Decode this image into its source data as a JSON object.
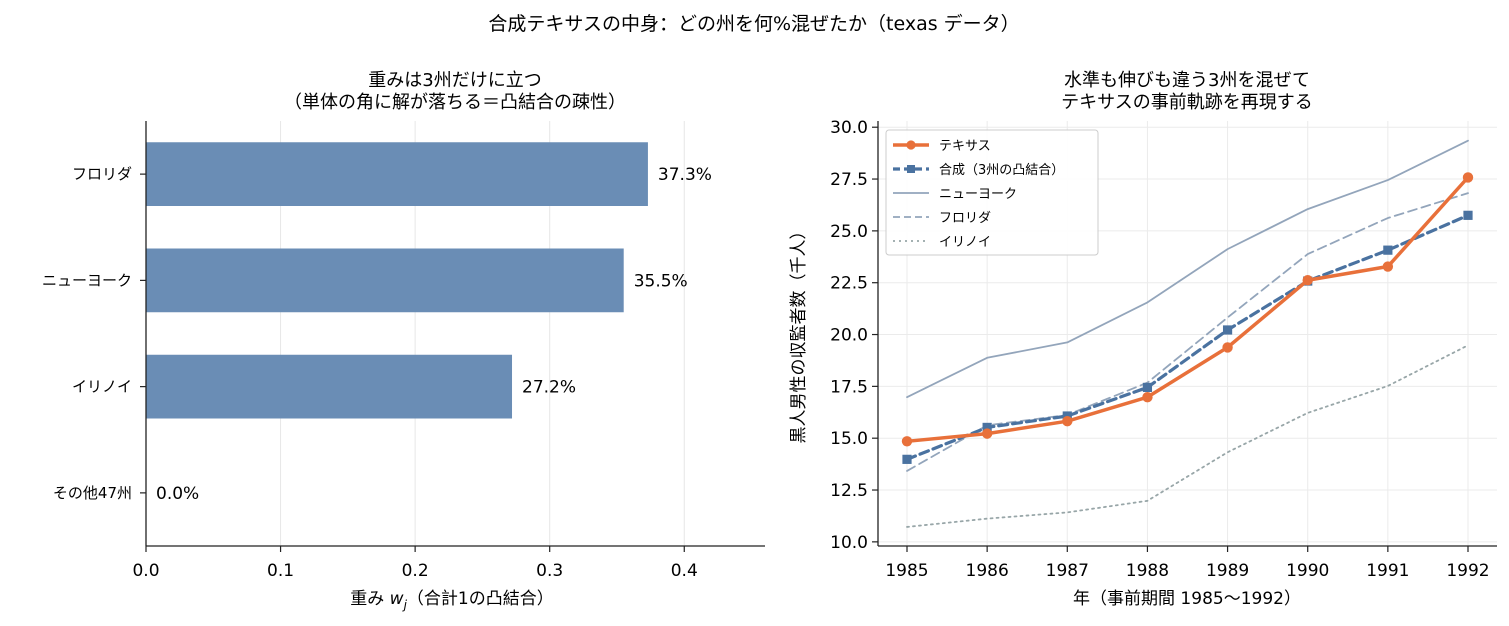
{
  "suptitle": "合成テキサスの中身：どの州を何%混ぜたか（texas データ）",
  "chart_data": [
    {
      "type": "bar",
      "orientation": "horizontal",
      "title_line1": "重みは3州だけに立つ",
      "title_line2": "（単体の角に解が落ちる＝凸結合の疎性）",
      "xlabel": "重み w_j（合計1の凸結合）",
      "xlabel_parts": {
        "main": "重み ",
        "var": "w",
        "sub": "j",
        "rest": "（合計1の凸結合）"
      },
      "categories": [
        "フロリダ",
        "ニューヨーク",
        "イリノイ",
        "その他47州"
      ],
      "values": [
        0.373,
        0.355,
        0.272,
        0.0
      ],
      "value_labels": [
        "37.3%",
        "35.5%",
        "27.2%",
        "0.0%"
      ],
      "xlim": [
        0,
        0.46
      ],
      "xticks": [
        0.0,
        0.1,
        0.2,
        0.3,
        0.4
      ],
      "xtick_labels": [
        "0.0",
        "0.1",
        "0.2",
        "0.3",
        "0.4"
      ],
      "grid": "x",
      "bar_color": "#6a8db5"
    },
    {
      "type": "line",
      "title_line1": "水準も伸びも違う3州を混ぜて",
      "title_line2": "テキサスの事前軌跡を再現する",
      "xlabel": "年（事前期間 1985〜1992）",
      "ylabel": "黒人男性の収監者数（千人）",
      "x": [
        1985,
        1986,
        1987,
        1988,
        1989,
        1990,
        1991,
        1992
      ],
      "xtick_labels": [
        "1985",
        "1986",
        "1987",
        "1988",
        "1989",
        "1990",
        "1991",
        "1992"
      ],
      "ylim": [
        9.8,
        30.3
      ],
      "yticks": [
        10.0,
        12.5,
        15.0,
        17.5,
        20.0,
        22.5,
        25.0,
        27.5,
        30.0
      ],
      "ytick_labels": [
        "10.0",
        "12.5",
        "15.0",
        "17.5",
        "20.0",
        "22.5",
        "25.0",
        "27.5",
        "30.0"
      ],
      "grid": "both",
      "legend_position": "top-left",
      "series": [
        {
          "name": "テキサス",
          "values": [
            14.85,
            15.22,
            15.82,
            16.98,
            19.38,
            22.62,
            23.28,
            27.58
          ],
          "color": "#e8703a",
          "style": "solid",
          "marker": "circle",
          "width": 3.5
        },
        {
          "name": "合成（3州の凸結合）",
          "values": [
            13.98,
            15.52,
            16.07,
            17.45,
            20.22,
            22.58,
            24.07,
            25.75
          ],
          "color": "#4a72a0",
          "style": "dashed",
          "marker": "square",
          "width": 3.2
        },
        {
          "name": "ニューヨーク",
          "values": [
            16.98,
            18.88,
            19.62,
            21.55,
            24.12,
            26.05,
            27.45,
            29.35
          ],
          "color": "#93a5bb",
          "style": "solid",
          "marker": "none",
          "width": 1.8
        },
        {
          "name": "フロリダ",
          "values": [
            13.42,
            15.62,
            16.12,
            17.68,
            20.82,
            23.88,
            25.62,
            26.82
          ],
          "color": "#93a5bb",
          "style": "dashed",
          "marker": "none",
          "width": 1.8
        },
        {
          "name": "イリノイ",
          "values": [
            10.72,
            11.12,
            11.42,
            11.98,
            14.32,
            16.22,
            17.52,
            19.48
          ],
          "color": "#98a6a8",
          "style": "dotted",
          "marker": "none",
          "width": 1.8
        }
      ]
    }
  ]
}
